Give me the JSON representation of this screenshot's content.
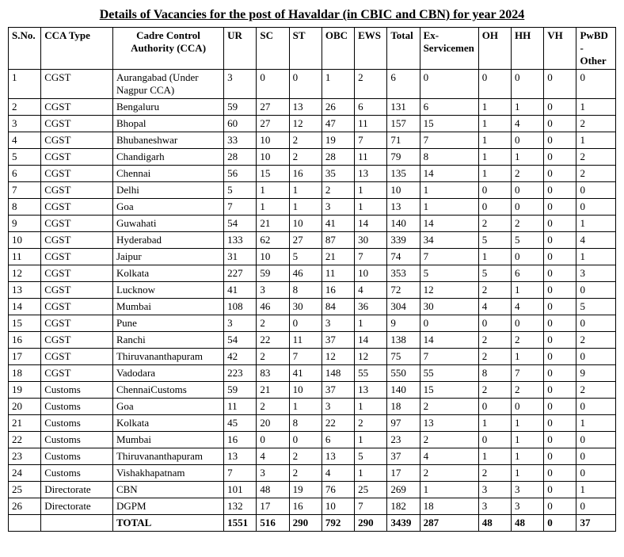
{
  "title": "Details of Vacancies for the post of Havaldar (in CBIC and CBN) for year 2024",
  "headers": {
    "sno": "S.No.",
    "cca_type": "CCA Type",
    "cca": "Cadre Control Authority (CCA)",
    "ur": "UR",
    "sc": "SC",
    "st": "ST",
    "obc": "OBC",
    "ews": "EWS",
    "total": "Total",
    "ex": "Ex-Servicemen",
    "oh": "OH",
    "hh": "HH",
    "vh": "VH",
    "pwbd": "PwBD - Other"
  },
  "rows": [
    {
      "sno": "1",
      "type": "CGST",
      "cca": "Aurangabad (Under Nagpur CCA)",
      "ur": "3",
      "sc": "0",
      "st": "0",
      "obc": "1",
      "ews": "2",
      "total": "6",
      "ex": "0",
      "oh": "0",
      "hh": "0",
      "vh": "0",
      "pwbd": "0"
    },
    {
      "sno": "2",
      "type": "CGST",
      "cca": "Bengaluru",
      "ur": "59",
      "sc": "27",
      "st": "13",
      "obc": "26",
      "ews": "6",
      "total": "131",
      "ex": "6",
      "oh": "1",
      "hh": "1",
      "vh": "0",
      "pwbd": "1"
    },
    {
      "sno": "3",
      "type": "CGST",
      "cca": "Bhopal",
      "ur": "60",
      "sc": "27",
      "st": "12",
      "obc": "47",
      "ews": "11",
      "total": "157",
      "ex": "15",
      "oh": "1",
      "hh": "4",
      "vh": "0",
      "pwbd": "2"
    },
    {
      "sno": "4",
      "type": "CGST",
      "cca": "Bhubaneshwar",
      "ur": "33",
      "sc": "10",
      "st": "2",
      "obc": "19",
      "ews": "7",
      "total": "71",
      "ex": "7",
      "oh": "1",
      "hh": "0",
      "vh": "0",
      "pwbd": "1"
    },
    {
      "sno": "5",
      "type": "CGST",
      "cca": "Chandigarh",
      "ur": "28",
      "sc": "10",
      "st": "2",
      "obc": "28",
      "ews": "11",
      "total": "79",
      "ex": "8",
      "oh": "1",
      "hh": "1",
      "vh": "0",
      "pwbd": "2"
    },
    {
      "sno": "6",
      "type": "CGST",
      "cca": "Chennai",
      "ur": "56",
      "sc": "15",
      "st": "16",
      "obc": "35",
      "ews": "13",
      "total": "135",
      "ex": "14",
      "oh": "1",
      "hh": "2",
      "vh": "0",
      "pwbd": "2"
    },
    {
      "sno": "7",
      "type": "CGST",
      "cca": "Delhi",
      "ur": "5",
      "sc": "1",
      "st": "1",
      "obc": "2",
      "ews": "1",
      "total": "10",
      "ex": "1",
      "oh": "0",
      "hh": "0",
      "vh": "0",
      "pwbd": "0"
    },
    {
      "sno": "8",
      "type": "CGST",
      "cca": "Goa",
      "ur": "7",
      "sc": "1",
      "st": "1",
      "obc": "3",
      "ews": "1",
      "total": "13",
      "ex": "1",
      "oh": "0",
      "hh": "0",
      "vh": "0",
      "pwbd": "0"
    },
    {
      "sno": "9",
      "type": "CGST",
      "cca": "Guwahati",
      "ur": "54",
      "sc": "21",
      "st": "10",
      "obc": "41",
      "ews": "14",
      "total": "140",
      "ex": "14",
      "oh": "2",
      "hh": "2",
      "vh": "0",
      "pwbd": "1"
    },
    {
      "sno": "10",
      "type": "CGST",
      "cca": "Hyderabad",
      "ur": "133",
      "sc": "62",
      "st": "27",
      "obc": "87",
      "ews": "30",
      "total": "339",
      "ex": "34",
      "oh": "5",
      "hh": "5",
      "vh": "0",
      "pwbd": "4"
    },
    {
      "sno": "11",
      "type": "CGST",
      "cca": "Jaipur",
      "ur": "31",
      "sc": "10",
      "st": "5",
      "obc": "21",
      "ews": "7",
      "total": "74",
      "ex": "7",
      "oh": "1",
      "hh": "0",
      "vh": "0",
      "pwbd": "1"
    },
    {
      "sno": "12",
      "type": "CGST",
      "cca": "Kolkata",
      "ur": "227",
      "sc": "59",
      "st": "46",
      "obc": "11",
      "ews": "10",
      "total": "353",
      "ex": "5",
      "oh": "5",
      "hh": "6",
      "vh": "0",
      "pwbd": "3"
    },
    {
      "sno": "13",
      "type": "CGST",
      "cca": "Lucknow",
      "ur": "41",
      "sc": "3",
      "st": "8",
      "obc": "16",
      "ews": "4",
      "total": "72",
      "ex": "12",
      "oh": "2",
      "hh": "1",
      "vh": "0",
      "pwbd": "0"
    },
    {
      "sno": "14",
      "type": "CGST",
      "cca": "Mumbai",
      "ur": "108",
      "sc": "46",
      "st": "30",
      "obc": "84",
      "ews": "36",
      "total": "304",
      "ex": "30",
      "oh": "4",
      "hh": "4",
      "vh": "0",
      "pwbd": "5"
    },
    {
      "sno": "15",
      "type": "CGST",
      "cca": "Pune",
      "ur": "3",
      "sc": "2",
      "st": "0",
      "obc": "3",
      "ews": "1",
      "total": "9",
      "ex": "0",
      "oh": "0",
      "hh": "0",
      "vh": "0",
      "pwbd": "0"
    },
    {
      "sno": "16",
      "type": "CGST",
      "cca": "Ranchi",
      "ur": "54",
      "sc": "22",
      "st": "11",
      "obc": "37",
      "ews": "14",
      "total": "138",
      "ex": "14",
      "oh": "2",
      "hh": "2",
      "vh": "0",
      "pwbd": "2"
    },
    {
      "sno": "17",
      "type": "CGST",
      "cca": "Thiruvananthapuram",
      "ur": "42",
      "sc": "2",
      "st": "7",
      "obc": "12",
      "ews": "12",
      "total": "75",
      "ex": "7",
      "oh": "2",
      "hh": "1",
      "vh": "0",
      "pwbd": "0"
    },
    {
      "sno": "18",
      "type": "CGST",
      "cca": "Vadodara",
      "ur": "223",
      "sc": "83",
      "st": "41",
      "obc": "148",
      "ews": "55",
      "total": "550",
      "ex": "55",
      "oh": "8",
      "hh": "7",
      "vh": "0",
      "pwbd": "9"
    },
    {
      "sno": "19",
      "type": "Customs",
      "cca": "ChennaiCustoms",
      "ur": "59",
      "sc": "21",
      "st": "10",
      "obc": "37",
      "ews": "13",
      "total": "140",
      "ex": "15",
      "oh": "2",
      "hh": "2",
      "vh": "0",
      "pwbd": "2"
    },
    {
      "sno": "20",
      "type": "Customs",
      "cca": "Goa",
      "ur": "11",
      "sc": "2",
      "st": "1",
      "obc": "3",
      "ews": "1",
      "total": "18",
      "ex": "2",
      "oh": "0",
      "hh": "0",
      "vh": "0",
      "pwbd": "0"
    },
    {
      "sno": "21",
      "type": "Customs",
      "cca": "Kolkata",
      "ur": "45",
      "sc": "20",
      "st": "8",
      "obc": "22",
      "ews": "2",
      "total": "97",
      "ex": "13",
      "oh": "1",
      "hh": "1",
      "vh": "0",
      "pwbd": "1"
    },
    {
      "sno": "22",
      "type": "Customs",
      "cca": "Mumbai",
      "ur": "16",
      "sc": "0",
      "st": "0",
      "obc": "6",
      "ews": "1",
      "total": "23",
      "ex": "2",
      "oh": "0",
      "hh": "1",
      "vh": "0",
      "pwbd": "0"
    },
    {
      "sno": "23",
      "type": "Customs",
      "cca": "Thiruvananthapuram",
      "ur": "13",
      "sc": "4",
      "st": "2",
      "obc": "13",
      "ews": "5",
      "total": "37",
      "ex": "4",
      "oh": "1",
      "hh": "1",
      "vh": "0",
      "pwbd": "0"
    },
    {
      "sno": "24",
      "type": "Customs",
      "cca": "Vishakhapatnam",
      "ur": "7",
      "sc": "3",
      "st": "2",
      "obc": "4",
      "ews": "1",
      "total": "17",
      "ex": "2",
      "oh": "2",
      "hh": "1",
      "vh": "0",
      "pwbd": "0"
    },
    {
      "sno": "25",
      "type": "Directorate",
      "cca": "CBN",
      "ur": "101",
      "sc": "48",
      "st": "19",
      "obc": "76",
      "ews": "25",
      "total": "269",
      "ex": "1",
      "oh": "3",
      "hh": "3",
      "vh": "0",
      "pwbd": "1"
    },
    {
      "sno": "26",
      "type": "Directorate",
      "cca": "DGPM",
      "ur": "132",
      "sc": "17",
      "st": "16",
      "obc": "10",
      "ews": "7",
      "total": "182",
      "ex": "18",
      "oh": "3",
      "hh": "3",
      "vh": "0",
      "pwbd": "0"
    }
  ],
  "totals": {
    "label": "TOTAL",
    "ur": "1551",
    "sc": "516",
    "st": "290",
    "obc": "792",
    "ews": "290",
    "total": "3439",
    "ex": "287",
    "oh": "48",
    "hh": "48",
    "vh": "0",
    "pwbd": "37"
  }
}
